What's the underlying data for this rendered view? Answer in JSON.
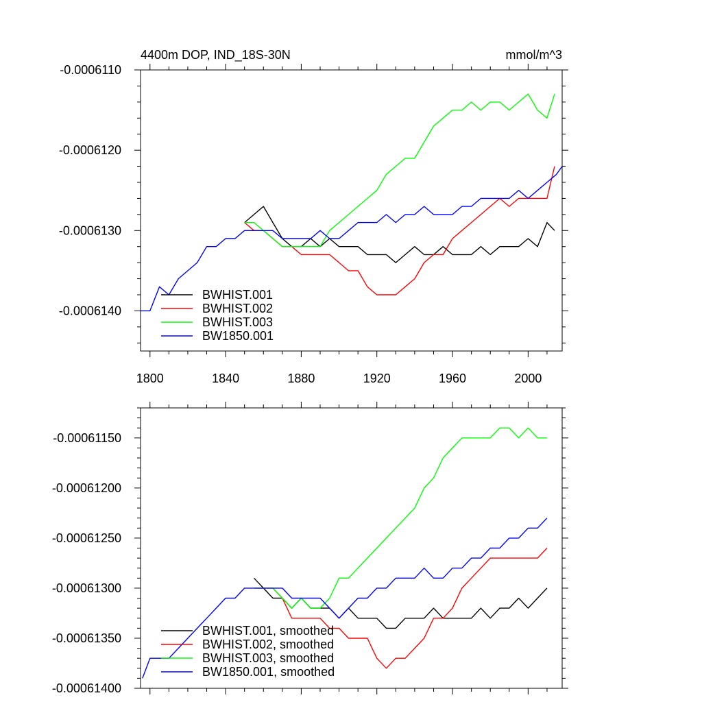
{
  "chart_data": [
    {
      "type": "line",
      "title": "4400m DOP, IND_18S-30N",
      "units": "mmol/m^3",
      "xlim": [
        1795,
        2018
      ],
      "ylim": [
        -0.0006145,
        -0.000611
      ],
      "xticks": [
        1800,
        1840,
        1880,
        1920,
        1960,
        2000
      ],
      "xtick_labels": [
        "1800",
        "1840",
        "1880",
        "1920",
        "1960",
        "2000"
      ],
      "yticks": [
        -0.000611,
        -0.000612,
        -0.000613,
        -0.000614
      ],
      "ytick_labels": [
        "-0.0006110",
        "-0.0006120",
        "-0.0006130",
        "-0.0006140"
      ],
      "grid": false,
      "legend_position": "bottom-left",
      "series": [
        {
          "name": "BWHIST.001",
          "color": "#000000",
          "x": [
            1850,
            1855,
            1860,
            1865,
            1870,
            1875,
            1880,
            1885,
            1890,
            1895,
            1900,
            1905,
            1910,
            1915,
            1920,
            1925,
            1930,
            1935,
            1940,
            1945,
            1950,
            1955,
            1960,
            1965,
            1970,
            1975,
            1980,
            1985,
            1990,
            1995,
            2000,
            2005,
            2010,
            2014
          ],
          "y": [
            -0.0006129,
            -0.0006128,
            -0.0006127,
            -0.0006129,
            -0.0006131,
            -0.0006132,
            -0.0006132,
            -0.0006131,
            -0.0006132,
            -0.0006131,
            -0.0006132,
            -0.0006132,
            -0.0006132,
            -0.0006133,
            -0.0006133,
            -0.0006133,
            -0.0006134,
            -0.0006133,
            -0.0006132,
            -0.0006133,
            -0.0006133,
            -0.0006132,
            -0.0006133,
            -0.0006133,
            -0.0006133,
            -0.0006132,
            -0.0006133,
            -0.0006132,
            -0.0006132,
            -0.0006132,
            -0.0006131,
            -0.0006132,
            -0.0006129,
            -0.000613
          ]
        },
        {
          "name": "BWHIST.002",
          "color": "#ff0000",
          "x": [
            1850,
            1855,
            1860,
            1865,
            1870,
            1875,
            1880,
            1885,
            1890,
            1895,
            1900,
            1905,
            1910,
            1915,
            1920,
            1925,
            1930,
            1935,
            1940,
            1945,
            1950,
            1955,
            1960,
            1965,
            1970,
            1975,
            1980,
            1985,
            1990,
            1995,
            2000,
            2005,
            2010,
            2014
          ],
          "y": [
            -0.0006129,
            -0.000613,
            -0.000613,
            -0.0006131,
            -0.0006132,
            -0.0006132,
            -0.0006133,
            -0.0006133,
            -0.0006133,
            -0.0006133,
            -0.0006134,
            -0.0006135,
            -0.0006135,
            -0.0006137,
            -0.0006138,
            -0.0006138,
            -0.0006138,
            -0.0006137,
            -0.0006136,
            -0.0006134,
            -0.0006133,
            -0.0006133,
            -0.0006131,
            -0.000613,
            -0.0006129,
            -0.0006128,
            -0.0006127,
            -0.0006126,
            -0.0006127,
            -0.0006126,
            -0.0006126,
            -0.0006126,
            -0.0006126,
            -0.0006122
          ]
        },
        {
          "name": "BWHIST.003",
          "color": "#00ff00",
          "x": [
            1850,
            1855,
            1860,
            1865,
            1870,
            1875,
            1880,
            1885,
            1890,
            1895,
            1900,
            1905,
            1910,
            1915,
            1920,
            1925,
            1930,
            1935,
            1940,
            1945,
            1950,
            1955,
            1960,
            1965,
            1970,
            1975,
            1980,
            1985,
            1990,
            1995,
            2000,
            2005,
            2010,
            2014
          ],
          "y": [
            -0.0006129,
            -0.0006129,
            -0.000613,
            -0.0006131,
            -0.0006132,
            -0.0006132,
            -0.0006132,
            -0.0006132,
            -0.0006132,
            -0.000613,
            -0.0006129,
            -0.0006128,
            -0.0006127,
            -0.0006126,
            -0.0006125,
            -0.0006123,
            -0.0006122,
            -0.0006121,
            -0.0006121,
            -0.0006119,
            -0.0006117,
            -0.0006116,
            -0.0006115,
            -0.0006115,
            -0.0006114,
            -0.0006115,
            -0.0006114,
            -0.0006114,
            -0.0006115,
            -0.0006114,
            -0.0006113,
            -0.0006115,
            -0.0006116,
            -0.0006113
          ]
        },
        {
          "name": "BW1850.001",
          "color": "#0000ff",
          "x": [
            1795,
            1800,
            1805,
            1810,
            1815,
            1820,
            1825,
            1830,
            1835,
            1840,
            1845,
            1850,
            1855,
            1860,
            1865,
            1870,
            1875,
            1880,
            1885,
            1890,
            1895,
            1900,
            1905,
            1910,
            1915,
            1920,
            1925,
            1930,
            1935,
            1940,
            1945,
            1950,
            1955,
            1960,
            1965,
            1970,
            1975,
            1980,
            1985,
            1990,
            1995,
            2000,
            2005,
            2010,
            2015,
            2018
          ],
          "y": [
            -0.000614,
            -0.000614,
            -0.0006137,
            -0.0006138,
            -0.0006136,
            -0.0006135,
            -0.0006134,
            -0.0006132,
            -0.0006132,
            -0.0006131,
            -0.0006131,
            -0.000613,
            -0.000613,
            -0.000613,
            -0.000613,
            -0.0006131,
            -0.0006131,
            -0.0006131,
            -0.0006131,
            -0.000613,
            -0.0006131,
            -0.0006131,
            -0.000613,
            -0.0006129,
            -0.0006129,
            -0.0006129,
            -0.0006128,
            -0.0006129,
            -0.0006128,
            -0.0006128,
            -0.0006127,
            -0.0006128,
            -0.0006128,
            -0.0006128,
            -0.0006127,
            -0.0006127,
            -0.0006126,
            -0.0006126,
            -0.0006126,
            -0.0006126,
            -0.0006125,
            -0.0006126,
            -0.0006125,
            -0.0006124,
            -0.0006123,
            -0.0006122
          ]
        }
      ],
      "legend": [
        "BWHIST.001",
        "BWHIST.002",
        "BWHIST.003",
        "BW1850.001"
      ]
    },
    {
      "type": "line",
      "title": "",
      "xlim": [
        1795,
        2018
      ],
      "ylim": [
        -0.000614,
        -0.0006112
      ],
      "xticks": [
        1800,
        1840,
        1880,
        1920,
        1960,
        2000
      ],
      "yticks": [
        -0.0006115,
        -0.000612,
        -0.0006125,
        -0.000613,
        -0.0006135,
        -0.000614
      ],
      "ytick_labels": [
        "-0.00061150",
        "-0.00061200",
        "-0.00061250",
        "-0.00061300",
        "-0.00061350",
        "-0.00061400"
      ],
      "grid": false,
      "legend_position": "bottom-left",
      "series": [
        {
          "name": "BWHIST.001, smoothed",
          "color": "#000000",
          "x": [
            1855,
            1860,
            1865,
            1870,
            1875,
            1880,
            1885,
            1890,
            1895,
            1900,
            1905,
            1910,
            1915,
            1920,
            1925,
            1930,
            1935,
            1940,
            1945,
            1950,
            1955,
            1960,
            1965,
            1970,
            1975,
            1980,
            1985,
            1990,
            1995,
            2000,
            2005,
            2010
          ],
          "y": [
            -0.0006129,
            -0.000613,
            -0.0006131,
            -0.0006131,
            -0.0006132,
            -0.0006131,
            -0.0006132,
            -0.0006132,
            -0.0006132,
            -0.0006133,
            -0.0006132,
            -0.0006133,
            -0.0006133,
            -0.0006133,
            -0.0006134,
            -0.0006134,
            -0.0006133,
            -0.0006133,
            -0.0006133,
            -0.0006132,
            -0.0006133,
            -0.0006133,
            -0.0006133,
            -0.0006133,
            -0.0006132,
            -0.0006133,
            -0.0006132,
            -0.0006132,
            -0.0006131,
            -0.0006132,
            -0.0006131,
            -0.000613
          ]
        },
        {
          "name": "BWHIST.002, smoothed",
          "color": "#ff0000",
          "x": [
            1855,
            1860,
            1865,
            1870,
            1875,
            1880,
            1885,
            1890,
            1895,
            1900,
            1905,
            1910,
            1915,
            1920,
            1925,
            1930,
            1935,
            1940,
            1945,
            1950,
            1955,
            1960,
            1965,
            1970,
            1975,
            1980,
            1985,
            1990,
            1995,
            2000,
            2005,
            2010
          ],
          "y": [
            -0.000613,
            -0.000613,
            -0.000613,
            -0.0006131,
            -0.0006133,
            -0.0006133,
            -0.0006133,
            -0.0006133,
            -0.0006134,
            -0.0006134,
            -0.0006135,
            -0.0006135,
            -0.0006135,
            -0.0006137,
            -0.0006138,
            -0.0006137,
            -0.0006137,
            -0.0006136,
            -0.0006135,
            -0.0006133,
            -0.0006133,
            -0.0006132,
            -0.000613,
            -0.0006129,
            -0.0006128,
            -0.0006127,
            -0.0006127,
            -0.0006127,
            -0.0006127,
            -0.0006127,
            -0.0006127,
            -0.0006126
          ]
        },
        {
          "name": "BWHIST.003, smoothed",
          "color": "#00ff00",
          "x": [
            1855,
            1860,
            1865,
            1870,
            1875,
            1880,
            1885,
            1890,
            1895,
            1900,
            1905,
            1910,
            1915,
            1920,
            1925,
            1930,
            1935,
            1940,
            1945,
            1950,
            1955,
            1960,
            1965,
            1970,
            1975,
            1980,
            1985,
            1990,
            1995,
            2000,
            2005,
            2010
          ],
          "y": [
            -0.000613,
            -0.000613,
            -0.000613,
            -0.0006131,
            -0.0006132,
            -0.0006131,
            -0.0006132,
            -0.0006132,
            -0.0006131,
            -0.0006129,
            -0.0006129,
            -0.0006128,
            -0.0006127,
            -0.0006126,
            -0.0006125,
            -0.0006124,
            -0.0006123,
            -0.0006122,
            -0.000612,
            -0.0006119,
            -0.0006117,
            -0.0006116,
            -0.0006115,
            -0.0006115,
            -0.0006115,
            -0.0006115,
            -0.0006114,
            -0.0006114,
            -0.0006115,
            -0.0006114,
            -0.0006115,
            -0.0006115
          ]
        },
        {
          "name": "BW1850.001, smoothed",
          "color": "#0000ff",
          "x": [
            1796,
            1800,
            1805,
            1810,
            1815,
            1820,
            1825,
            1830,
            1835,
            1840,
            1845,
            1850,
            1855,
            1860,
            1865,
            1870,
            1875,
            1880,
            1885,
            1890,
            1895,
            1900,
            1905,
            1910,
            1915,
            1920,
            1925,
            1930,
            1935,
            1940,
            1945,
            1950,
            1955,
            1960,
            1965,
            1970,
            1975,
            1980,
            1985,
            1990,
            1995,
            2000,
            2005,
            2010
          ],
          "y": [
            -0.0006139,
            -0.0006137,
            -0.0006137,
            -0.0006137,
            -0.0006136,
            -0.0006135,
            -0.0006134,
            -0.0006133,
            -0.0006132,
            -0.0006131,
            -0.0006131,
            -0.000613,
            -0.000613,
            -0.000613,
            -0.000613,
            -0.000613,
            -0.0006131,
            -0.0006131,
            -0.0006131,
            -0.0006131,
            -0.0006132,
            -0.0006133,
            -0.0006132,
            -0.0006131,
            -0.0006131,
            -0.000613,
            -0.000613,
            -0.0006129,
            -0.0006129,
            -0.0006129,
            -0.0006128,
            -0.0006129,
            -0.0006129,
            -0.0006128,
            -0.0006128,
            -0.0006127,
            -0.0006127,
            -0.0006126,
            -0.0006126,
            -0.0006125,
            -0.0006125,
            -0.0006124,
            -0.0006124,
            -0.0006123
          ]
        }
      ],
      "legend": [
        "BWHIST.001, smoothed",
        "BWHIST.002, smoothed",
        "BWHIST.003, smoothed",
        "BW1850.001, smoothed"
      ]
    }
  ]
}
